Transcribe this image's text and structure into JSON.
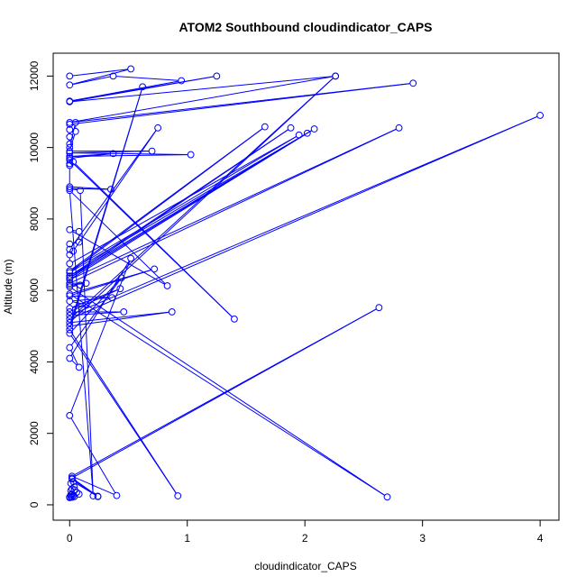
{
  "chart_data": {
    "type": "line",
    "title": "ATOM2 Southbound cloudindicator_CAPS",
    "xlabel": "cloudindicator_CAPS",
    "ylabel": "Altitude (m)",
    "xlim": [
      -0.14,
      4.16
    ],
    "ylim": [
      -430,
      12640
    ],
    "x_ticks": [
      0,
      1,
      2,
      3,
      4
    ],
    "y_ticks": [
      0,
      2000,
      4000,
      6000,
      8000,
      10000,
      12000
    ],
    "grid": false,
    "series": [
      {
        "name": "ATOM2 Southbound",
        "color": "#0000ff",
        "marker": "open-circle",
        "points": [
          [
            0,
            12000
          ],
          [
            0.52,
            12200
          ],
          [
            0,
            11750
          ],
          [
            0.37,
            12000
          ],
          [
            0.95,
            11870
          ],
          [
            0,
            11300
          ],
          [
            1.25,
            12000
          ],
          [
            0,
            11280
          ],
          [
            2.26,
            12000
          ],
          [
            0,
            10700
          ],
          [
            2.92,
            11800
          ],
          [
            0,
            10650
          ],
          [
            0,
            10500
          ],
          [
            0,
            10300
          ],
          [
            0,
            10100
          ],
          [
            0,
            10000
          ],
          [
            0.05,
            10700
          ],
          [
            0.05,
            10450
          ],
          [
            0,
            9900
          ],
          [
            0.7,
            9900
          ],
          [
            0,
            9850
          ],
          [
            1.03,
            9800
          ],
          [
            0,
            9750
          ],
          [
            0.37,
            9830
          ],
          [
            0,
            9700
          ],
          [
            0,
            9650
          ],
          [
            1.4,
            5200
          ],
          [
            0.03,
            9600
          ],
          [
            0,
            9550
          ],
          [
            0,
            9500
          ],
          [
            0,
            8900
          ],
          [
            0.35,
            8830
          ],
          [
            0,
            8850
          ],
          [
            0.09,
            8800
          ],
          [
            0.2,
            250
          ],
          [
            0,
            8800
          ],
          [
            0.83,
            6130
          ],
          [
            0,
            7700
          ],
          [
            0.08,
            7650
          ],
          [
            0.08,
            7350
          ],
          [
            0,
            7300
          ],
          [
            0,
            7150
          ],
          [
            0.75,
            10550
          ],
          [
            0.03,
            7100
          ],
          [
            0,
            7000
          ],
          [
            0,
            6750
          ],
          [
            1.95,
            10350
          ],
          [
            0,
            6550
          ],
          [
            1.66,
            10580
          ],
          [
            0,
            6500
          ],
          [
            2.08,
            10520
          ],
          [
            0,
            6400
          ],
          [
            1.88,
            10550
          ],
          [
            0,
            6350
          ],
          [
            2.02,
            10400
          ],
          [
            0,
            6300
          ],
          [
            2.8,
            10550
          ],
          [
            0,
            6200
          ],
          [
            0.14,
            6200
          ],
          [
            0,
            6150
          ],
          [
            0.09,
            6150
          ],
          [
            0,
            6100
          ],
          [
            2.7,
            220
          ],
          [
            0,
            5900
          ],
          [
            0.72,
            6600
          ],
          [
            0,
            5850
          ],
          [
            0.36,
            5800
          ],
          [
            0,
            5700
          ],
          [
            0.14,
            5600
          ],
          [
            0,
            5500
          ],
          [
            0.43,
            6050
          ],
          [
            0,
            5400
          ],
          [
            0.46,
            5400
          ],
          [
            0,
            5300
          ],
          [
            4.0,
            10900
          ],
          [
            0,
            5200
          ],
          [
            2.26,
            12000
          ],
          [
            0,
            5100
          ],
          [
            0.87,
            5400
          ],
          [
            0,
            5000
          ],
          [
            0.62,
            11700
          ],
          [
            0,
            4900
          ],
          [
            0.92,
            250
          ],
          [
            0,
            4800
          ],
          [
            0.44,
            6350
          ],
          [
            0,
            4400
          ],
          [
            0.08,
            3850
          ],
          [
            0,
            4100
          ],
          [
            0.52,
            6900
          ],
          [
            0,
            2500
          ],
          [
            0.4,
            260
          ],
          [
            0.02,
            800
          ],
          [
            2.63,
            5520
          ],
          [
            0.02,
            750
          ],
          [
            0.24,
            240
          ],
          [
            0.02,
            720
          ],
          [
            0.24,
            230
          ],
          [
            0.03,
            650
          ],
          [
            0.01,
            600
          ],
          [
            0.04,
            500
          ],
          [
            0.02,
            450
          ],
          [
            0.04,
            420
          ],
          [
            0.01,
            400
          ],
          [
            0.06,
            350
          ],
          [
            0.02,
            300
          ],
          [
            0.08,
            300
          ],
          [
            0.01,
            280
          ],
          [
            0.03,
            260
          ],
          [
            0.01,
            240
          ],
          [
            0.04,
            230
          ],
          [
            0,
            220
          ],
          [
            0.02,
            210
          ],
          [
            0,
            200
          ]
        ]
      }
    ]
  }
}
